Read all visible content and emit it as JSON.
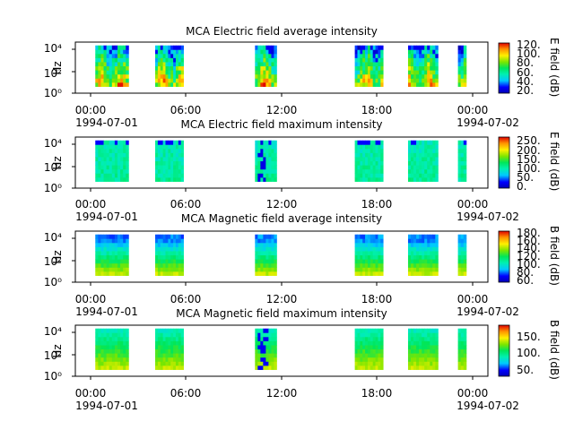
{
  "chart_data": [
    {
      "type": "heatmap",
      "title": "MCA  Electric field average intensity",
      "ylabel": "Hz",
      "y_scale": "log",
      "ylim": [
        1,
        40000
      ],
      "y_ticks": [
        "10⁰",
        "10²",
        "10⁴"
      ],
      "x_ticks": [
        "00:00",
        "06:00",
        "12:00",
        "18:00",
        "00:00"
      ],
      "x_dates": [
        "1994-07-01",
        "1994-07-02"
      ],
      "colorbar": {
        "label": "E field (dB)",
        "range": [
          15,
          125
        ],
        "ticks": [
          "20.",
          "40.",
          "60.",
          "80.",
          "100.",
          "120."
        ]
      },
      "time_segments_h": [
        [
          1.2,
          3.2
        ],
        [
          4.8,
          6.5
        ],
        [
          10.8,
          12.1
        ],
        [
          16.8,
          18.5
        ],
        [
          20.0,
          21.8
        ],
        [
          23.0,
          23.5
        ]
      ],
      "profile": "eavg"
    },
    {
      "type": "heatmap",
      "title": "MCA  Electric field maximum intensity",
      "ylabel": "Hz",
      "y_scale": "log",
      "ylim": [
        1,
        40000
      ],
      "y_ticks": [
        "10⁰",
        "10²",
        "10⁴"
      ],
      "x_ticks": [
        "00:00",
        "06:00",
        "12:00",
        "18:00",
        "00:00"
      ],
      "x_dates": [
        "1994-07-01",
        "1994-07-02"
      ],
      "colorbar": {
        "label": "E field (dB)",
        "range": [
          -10,
          270
        ],
        "ticks": [
          "0.",
          "50.",
          "100.",
          "150.",
          "200.",
          "250."
        ]
      },
      "time_segments_h": [
        [
          1.2,
          3.2
        ],
        [
          4.8,
          6.5
        ],
        [
          10.8,
          12.1
        ],
        [
          16.8,
          18.5
        ],
        [
          20.0,
          21.8
        ],
        [
          23.0,
          23.5
        ]
      ],
      "profile": "emax"
    },
    {
      "type": "heatmap",
      "title": "MCA  Magnetic field average intensity",
      "ylabel": "Hz",
      "y_scale": "log",
      "ylim": [
        1,
        40000
      ],
      "y_ticks": [
        "10⁰",
        "10²",
        "10⁴"
      ],
      "x_ticks": [
        "00:00",
        "06:00",
        "12:00",
        "18:00",
        "00:00"
      ],
      "x_dates": [
        "1994-07-01",
        "1994-07-02"
      ],
      "colorbar": {
        "label": "B field (dB)",
        "range": [
          55,
          185
        ],
        "ticks": [
          "60.",
          "80.",
          "100.",
          "120.",
          "140.",
          "160.",
          "180."
        ]
      },
      "time_segments_h": [
        [
          1.2,
          3.2
        ],
        [
          4.8,
          6.5
        ],
        [
          10.8,
          12.1
        ],
        [
          16.8,
          18.5
        ],
        [
          20.0,
          21.8
        ],
        [
          23.0,
          23.5
        ]
      ],
      "profile": "bavg"
    },
    {
      "type": "heatmap",
      "title": "MCA  Magnetic field maximum intensity",
      "ylabel": "Hz",
      "y_scale": "log",
      "ylim": [
        1,
        40000
      ],
      "y_ticks": [
        "10⁰",
        "10²",
        "10⁴"
      ],
      "x_ticks": [
        "00:00",
        "06:00",
        "12:00",
        "18:00",
        "00:00"
      ],
      "x_dates": [
        "1994-07-01",
        "1994-07-02"
      ],
      "colorbar": {
        "label": "B field (dB)",
        "range": [
          30,
          190
        ],
        "ticks": [
          "50.",
          "100.",
          "150."
        ]
      },
      "time_segments_h": [
        [
          1.2,
          3.2
        ],
        [
          4.8,
          6.5
        ],
        [
          10.8,
          12.1
        ],
        [
          16.8,
          18.5
        ],
        [
          20.0,
          21.8
        ],
        [
          23.0,
          23.5
        ]
      ],
      "profile": "bmax"
    }
  ]
}
